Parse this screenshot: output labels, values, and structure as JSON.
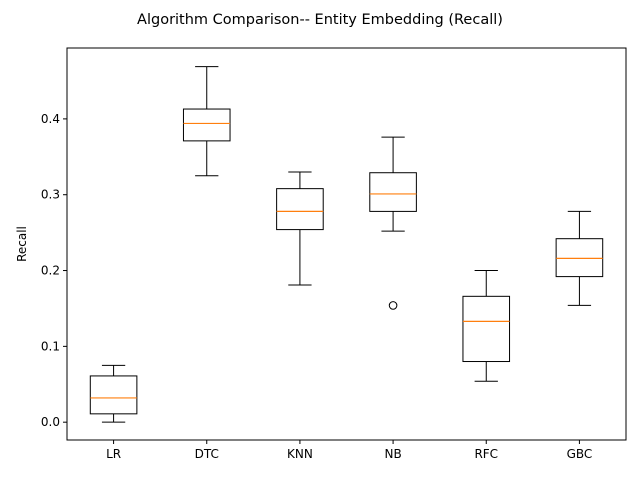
{
  "chart_data": {
    "type": "box",
    "title": "Algorithm Comparison-- Entity Embedding (Recall)",
    "xlabel": "",
    "ylabel": "Recall",
    "ylim": [
      -0.0235,
      0.4935
    ],
    "yticks": [
      "0.0",
      "0.1",
      "0.2",
      "0.3",
      "0.4"
    ],
    "grid": false,
    "legend": "none",
    "colors": {
      "box": "#000000",
      "median": "#ff7f0e",
      "flier": "#000000"
    },
    "categories": [
      "LR",
      "DTC",
      "KNN",
      "NB",
      "RFC",
      "GBC"
    ],
    "boxes": [
      {
        "label": "LR",
        "whisker_low": 0.0,
        "q1": 0.011,
        "median": 0.032,
        "q3": 0.061,
        "whisker_high": 0.075,
        "outliers": []
      },
      {
        "label": "DTC",
        "whisker_low": 0.325,
        "q1": 0.371,
        "median": 0.394,
        "q3": 0.413,
        "whisker_high": 0.469,
        "outliers": []
      },
      {
        "label": "KNN",
        "whisker_low": 0.181,
        "q1": 0.254,
        "median": 0.278,
        "q3": 0.308,
        "whisker_high": 0.33,
        "outliers": []
      },
      {
        "label": "NB",
        "whisker_low": 0.252,
        "q1": 0.278,
        "median": 0.301,
        "q3": 0.329,
        "whisker_high": 0.376,
        "outliers": [
          0.154
        ]
      },
      {
        "label": "RFC",
        "whisker_low": 0.054,
        "q1": 0.08,
        "median": 0.133,
        "q3": 0.166,
        "whisker_high": 0.2,
        "outliers": []
      },
      {
        "label": "GBC",
        "whisker_low": 0.154,
        "q1": 0.192,
        "median": 0.216,
        "q3": 0.242,
        "whisker_high": 0.278,
        "outliers": []
      }
    ]
  }
}
